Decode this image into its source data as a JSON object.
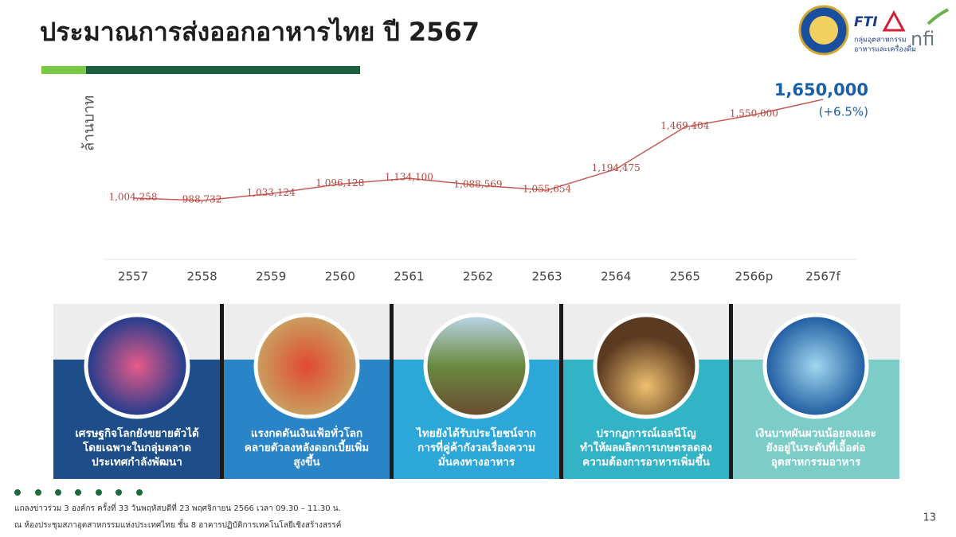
{
  "header": {
    "title": "ประมาณการส่งออกอาหารไทย ปี 2567"
  },
  "logos": {
    "fti": "FTI",
    "group_line1": "กลุ่มอุตสาหกรรม",
    "group_line2": "อาหารและเครื่องดื่ม",
    "nfi": "nfi"
  },
  "chart_data": {
    "type": "line",
    "y_label": "ล้านบาท",
    "categories": [
      "2557",
      "2558",
      "2559",
      "2560",
      "2561",
      "2562",
      "2563",
      "2564",
      "2565",
      "2566p",
      "2567f"
    ],
    "values": [
      1004258,
      988732,
      1033124,
      1096128,
      1134100,
      1088569,
      1055654,
      1194475,
      1469404,
      1550000,
      1650000
    ],
    "value_labels": [
      "1,004,258",
      "988,732",
      "1,033,124",
      "1,096,128",
      "1,134,100",
      "1,088,569",
      "1,055,654",
      "1,194,475",
      "1,469,404",
      "1,550,000",
      "1,650,000"
    ],
    "color": "#c65a55",
    "annotation": "(+6.5%)"
  },
  "panels": [
    {
      "lines": [
        "เศรษฐกิจโลกยังขยายตัวได้",
        "โดยเฉพาะในกลุ่มตลาด",
        "ประเทศกำลังพัฒนา"
      ]
    },
    {
      "lines": [
        "แรงกดดันเงินเฟ้อทั่วโลก",
        "คลายตัวลงหลังดอกเบี้ยเพิ่ม",
        "สูงขึ้น"
      ]
    },
    {
      "lines": [
        "ไทยยังได้รับประโยชน์จาก",
        "การที่คู่ค้ากังวลเรื่องความ",
        "มั่นคงทางอาหาร"
      ]
    },
    {
      "lines": [
        "ปรากฏการณ์เอลนีโญ",
        "ทำให้ผลผลิตการเกษตรลดลง",
        "ความต้องการอาหารเพิ่มขึ้น"
      ]
    },
    {
      "lines": [
        "เงินบาทผันผวนน้อยลงและ",
        "ยังอยู่ในระดับที่เอื้อต่อ",
        "อุตสาหกรรมอาหาร"
      ]
    }
  ],
  "footer": {
    "line1": "แถลงข่าวร่วม 3 องค์กร ครั้งที่ 33 วันพฤหัสบดีที่ 23 พฤศจิกายน 2566 เวลา 09.30 – 11.30 น.",
    "line2": "ณ ห้องประชุมสภาอุตสาหกรรมแห่งประเทศไทย ชั้น 8 อาคารปฏิบัติการเทคโนโลยีเชิงสร้างสรรค์"
  },
  "page_number": "13"
}
